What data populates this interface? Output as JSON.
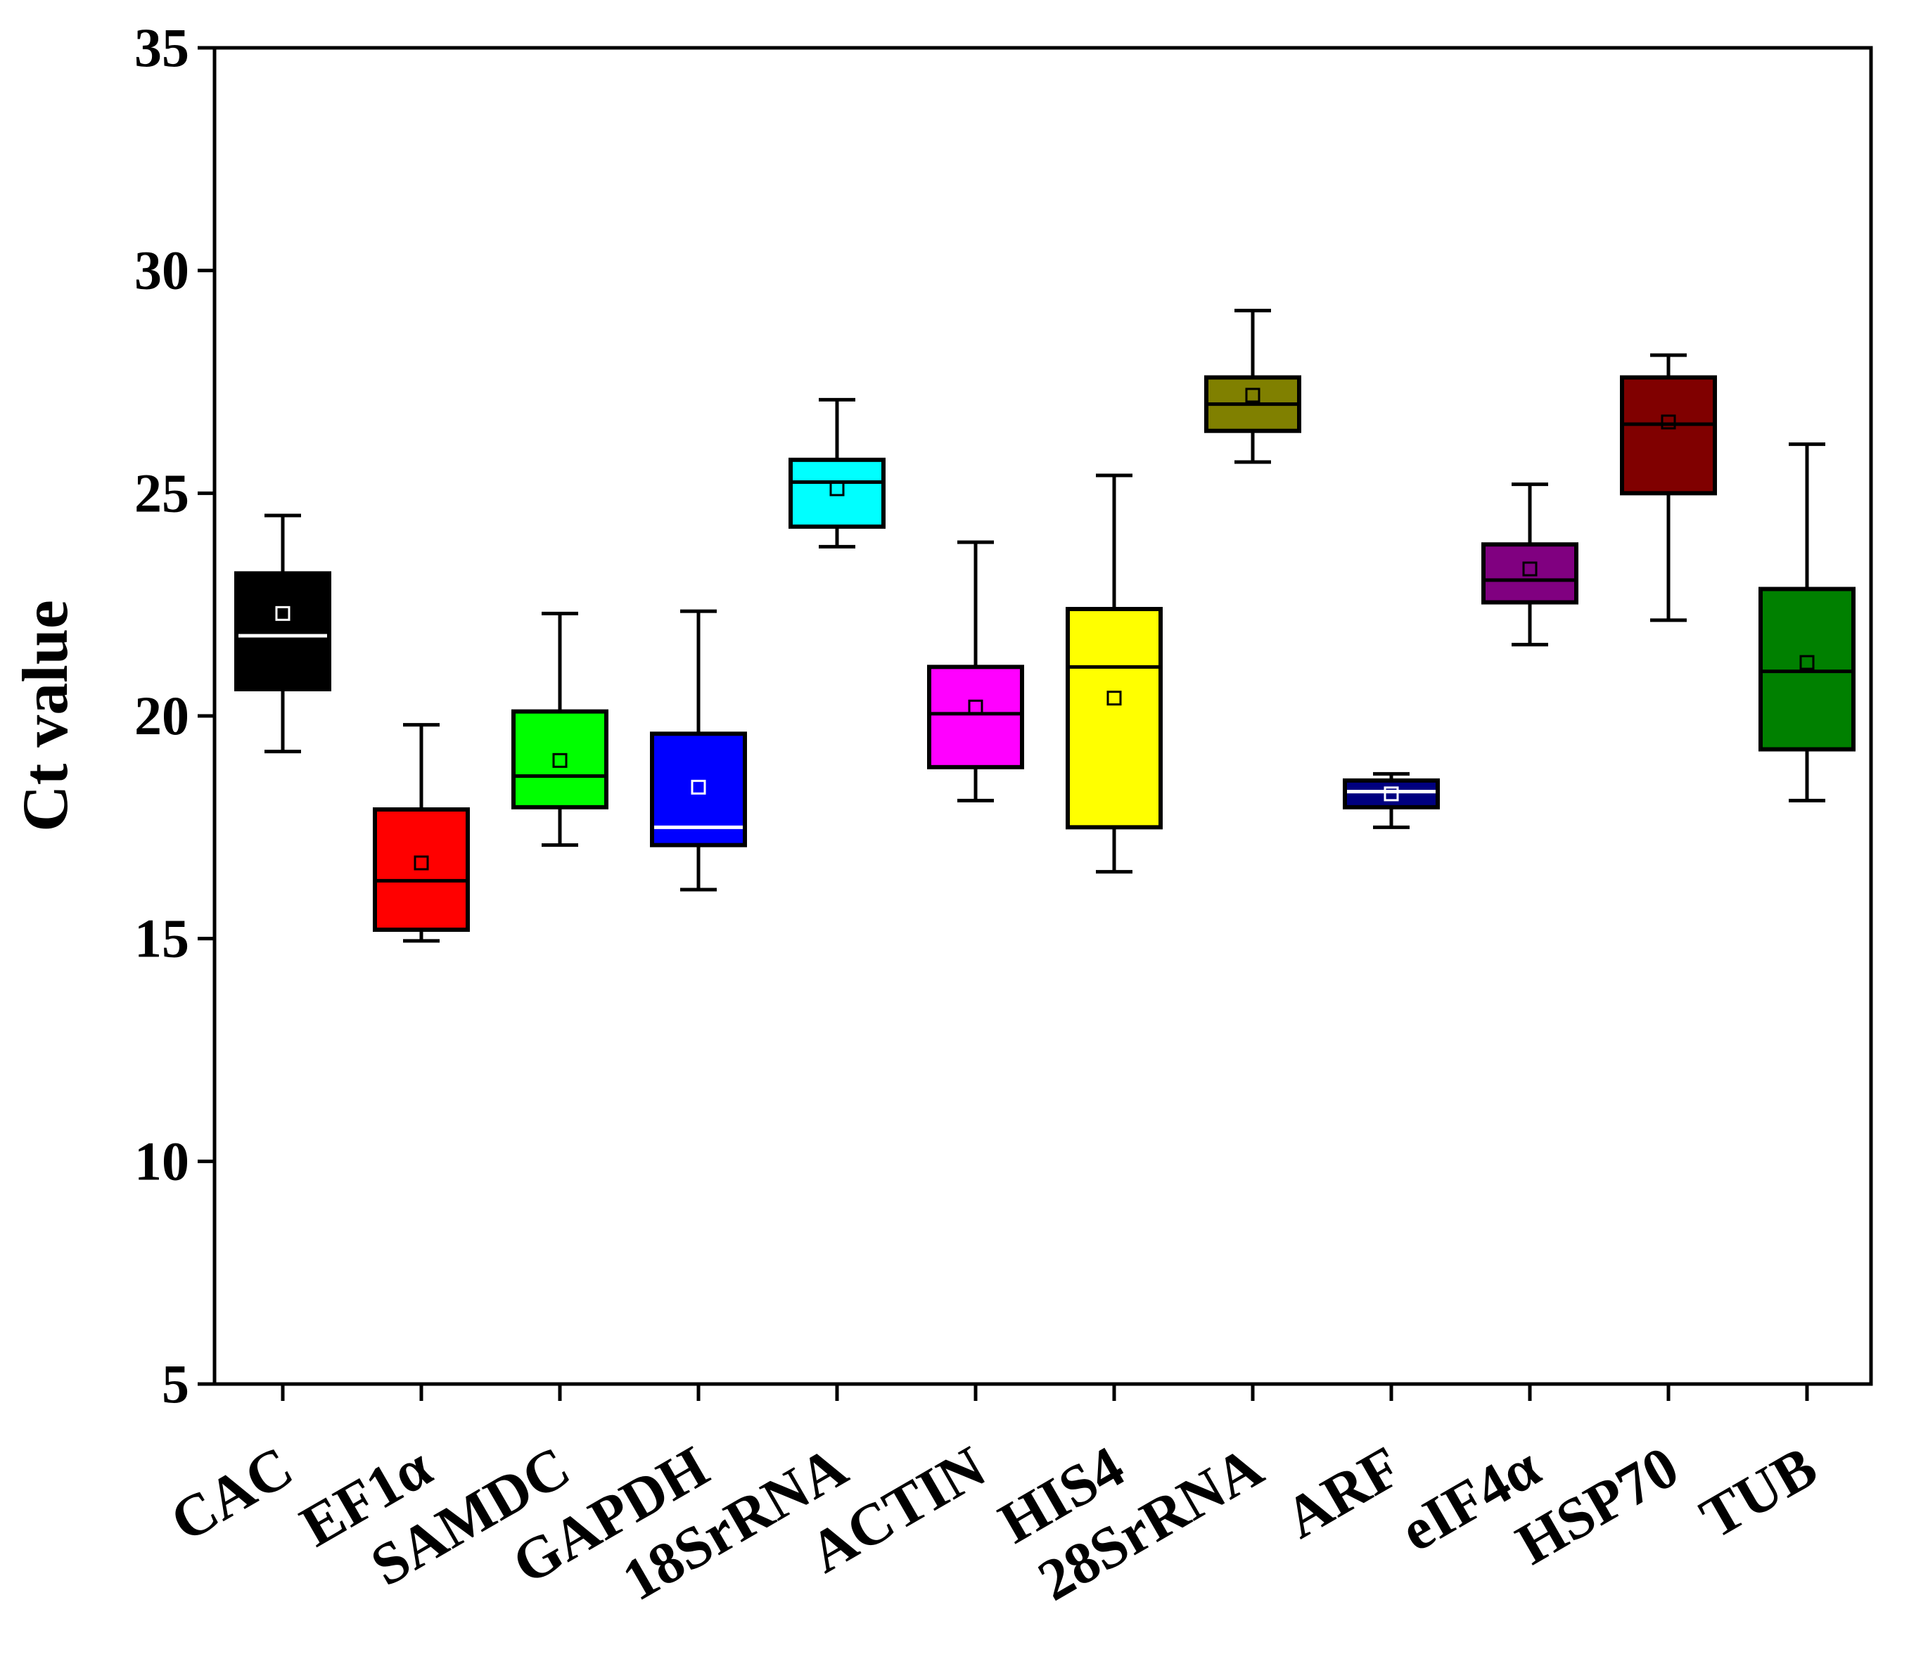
{
  "chart_data": {
    "type": "box",
    "title": "",
    "xlabel": "",
    "ylabel": "Ct value",
    "ylim": [
      5,
      35
    ],
    "yticks": [
      5,
      10,
      15,
      20,
      25,
      30,
      35
    ],
    "ytick_labels": [
      "5",
      "10",
      "15",
      "20",
      "25",
      "30",
      "35"
    ],
    "grid": false,
    "legend": "none",
    "categories": [
      "CAC",
      "EF1α",
      "SAMDC",
      "GAPDH",
      "18SrRNA",
      "ACTIN",
      "HIS4",
      "28SrRNA",
      "ARF",
      "eIF4α",
      "HSP70",
      "TUB"
    ],
    "series": [
      {
        "name": "CAC",
        "min": 19.2,
        "q1": 20.6,
        "median": 21.8,
        "q3": 23.2,
        "max": 24.5,
        "mean": 22.3,
        "color": "#000000"
      },
      {
        "name": "EF1α",
        "min": 14.95,
        "q1": 15.2,
        "median": 16.3,
        "q3": 17.9,
        "max": 19.8,
        "mean": 16.7,
        "color": "#ff0000"
      },
      {
        "name": "SAMDC",
        "min": 17.1,
        "q1": 17.95,
        "median": 18.65,
        "q3": 20.1,
        "max": 22.3,
        "mean": 19.0,
        "color": "#00ff00"
      },
      {
        "name": "GAPDH",
        "min": 16.1,
        "q1": 17.1,
        "median": 17.5,
        "q3": 19.6,
        "max": 22.35,
        "mean": 18.4,
        "color": "#0000ff"
      },
      {
        "name": "18SrRNA",
        "min": 23.8,
        "q1": 24.25,
        "median": 25.25,
        "q3": 25.75,
        "max": 27.1,
        "mean": 25.1,
        "color": "#00ffff"
      },
      {
        "name": "ACTIN",
        "min": 18.1,
        "q1": 18.85,
        "median": 20.05,
        "q3": 21.1,
        "max": 23.9,
        "mean": 20.2,
        "color": "#ff00ff"
      },
      {
        "name": "HIS4",
        "min": 16.5,
        "q1": 17.5,
        "median": 21.1,
        "q3": 22.4,
        "max": 25.4,
        "mean": 20.4,
        "color": "#ffff00"
      },
      {
        "name": "28SrRNA",
        "min": 25.7,
        "q1": 26.4,
        "median": 27.0,
        "q3": 27.6,
        "max": 29.1,
        "mean": 27.2,
        "color": "#808000"
      },
      {
        "name": "ARF",
        "min": 17.5,
        "q1": 17.95,
        "median": 18.3,
        "q3": 18.55,
        "max": 18.7,
        "mean": 18.25,
        "color": "#000080"
      },
      {
        "name": "eIF4α",
        "min": 21.6,
        "q1": 22.55,
        "median": 23.05,
        "q3": 23.85,
        "max": 25.2,
        "mean": 23.3,
        "color": "#800080"
      },
      {
        "name": "HSP70",
        "min": 22.15,
        "q1": 25.0,
        "median": 26.55,
        "q3": 27.6,
        "max": 28.1,
        "mean": 26.6,
        "color": "#800000"
      },
      {
        "name": "TUB",
        "min": 18.1,
        "q1": 19.25,
        "median": 21.0,
        "q3": 22.85,
        "max": 26.1,
        "mean": 21.2,
        "color": "#008000"
      }
    ]
  }
}
